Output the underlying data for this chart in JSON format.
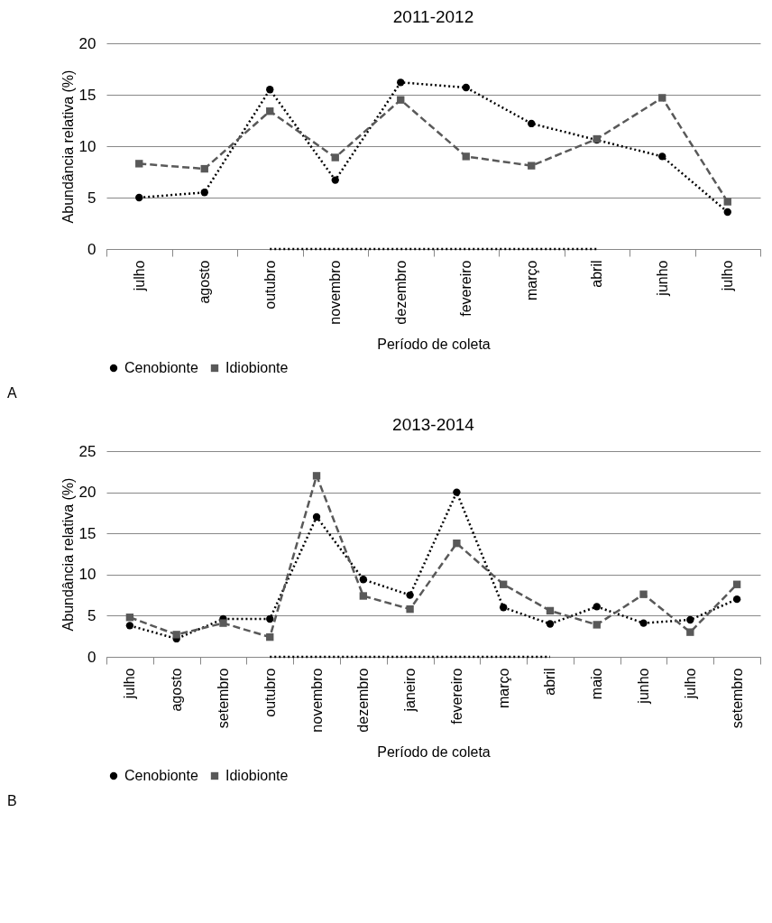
{
  "chart_data": [
    {
      "type": "line",
      "title": "2011-2012",
      "xlabel": "Período de coleta",
      "ylabel": "Abundância relativa (%)",
      "categories": [
        "julho",
        "agosto",
        "outubro",
        "novembro",
        "dezembro",
        "fevereiro",
        "março",
        "abril",
        "junho",
        "julho"
      ],
      "series": [
        {
          "name": "Cenobionte",
          "color": "#000000",
          "marker": "circle",
          "line_style": "dotted",
          "values": [
            5.0,
            5.5,
            15.5,
            6.7,
            16.2,
            15.7,
            12.2,
            10.6,
            9.0,
            3.6
          ]
        },
        {
          "name": "Idiobionte",
          "color": "#595959",
          "marker": "square",
          "line_style": "dashed",
          "values": [
            8.3,
            7.8,
            13.4,
            8.9,
            14.5,
            9.0,
            8.1,
            10.7,
            14.7,
            4.6
          ]
        },
        {
          "color": "#000000",
          "marker": "none",
          "line_style": "dotted",
          "values": [
            null,
            null,
            0,
            0,
            0,
            0,
            0,
            0,
            null,
            null
          ]
        }
      ],
      "ylim": [
        0,
        20
      ],
      "yticks": [
        0,
        5,
        10,
        15,
        20
      ],
      "grid": "y",
      "legend": "bottom",
      "annotations": [
        "A"
      ]
    },
    {
      "type": "line",
      "title": "2013-2014",
      "xlabel": "Período de coleta",
      "ylabel": "Abundância relativa (%)",
      "categories": [
        "julho",
        "agosto",
        "setembro",
        "outubro",
        "novembro",
        "dezembro",
        "janeiro",
        "fevereiro",
        "março",
        "abril",
        "maio",
        "junho",
        "julho",
        "setembro"
      ],
      "series": [
        {
          "name": "Cenobionte",
          "color": "#000000",
          "marker": "circle",
          "line_style": "dotted",
          "values": [
            3.8,
            2.2,
            4.6,
            4.6,
            17.0,
            9.4,
            7.5,
            20.0,
            6.0,
            4.0,
            6.1,
            4.1,
            4.5,
            7.0
          ]
        },
        {
          "name": "Idiobionte",
          "color": "#595959",
          "marker": "square",
          "line_style": "dashed",
          "values": [
            4.8,
            2.7,
            4.1,
            2.4,
            22.0,
            7.4,
            5.8,
            13.8,
            8.8,
            5.6,
            3.9,
            7.6,
            3.0,
            8.8
          ]
        },
        {
          "color": "#000000",
          "marker": "none",
          "line_style": "dotted",
          "values": [
            null,
            null,
            null,
            0,
            0,
            0,
            0,
            0,
            0,
            0,
            null,
            null,
            null,
            null
          ]
        }
      ],
      "ylim": [
        0,
        25
      ],
      "yticks": [
        0,
        5,
        10,
        15,
        20,
        25
      ],
      "grid": "y",
      "legend": "bottom",
      "annotations": [
        "B"
      ]
    }
  ]
}
